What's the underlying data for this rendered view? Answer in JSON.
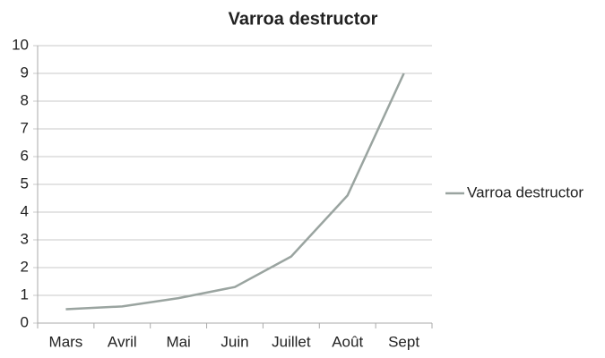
{
  "chart_data": {
    "type": "line",
    "title": "Varroa destructor",
    "categories": [
      "Mars",
      "Avril",
      "Mai",
      "Juin",
      "Juillet",
      "Août",
      "Sept"
    ],
    "series": [
      {
        "name": "Varroa destructor",
        "color": "#9aa4a0",
        "values": [
          0.5,
          0.6,
          0.9,
          1.3,
          2.4,
          4.6,
          9
        ]
      }
    ],
    "ylim": [
      0,
      10
    ],
    "yticks": [
      0,
      1,
      2,
      3,
      4,
      5,
      6,
      7,
      8,
      9,
      10
    ],
    "grid": true,
    "legend": "right"
  }
}
